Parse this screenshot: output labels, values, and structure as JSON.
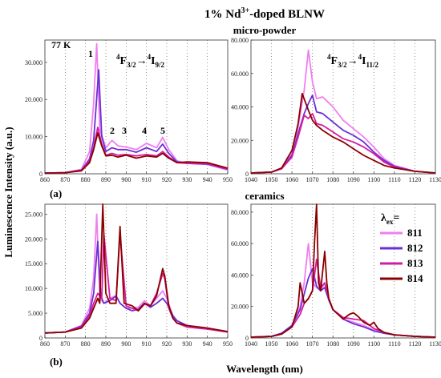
{
  "title_main": "1% Nd",
  "title_sup": "3+",
  "title_tail": "-doped BLNW",
  "section_top": "micro-powder",
  "section_bottom": "ceramics",
  "ylabel": "Luminescence Intensity (a.u.)",
  "xlabel": "Wavelength (nm)",
  "temp_label": "77 K",
  "panel_a": "(a)",
  "panel_b": "(b)",
  "trans_left": {
    "a": "4",
    "b": "F",
    "c": "3/2",
    "arrow": "→",
    "d": "4",
    "e": "I",
    "f": "9/2"
  },
  "trans_right": {
    "a": "4",
    "b": "F",
    "c": "3/2",
    "arrow": "→",
    "d": "4",
    "e": "I",
    "f": "11/2"
  },
  "peak_labels": [
    "1",
    "2",
    "3",
    "4",
    "5"
  ],
  "legend": {
    "title_a": "λ",
    "title_b": "ex",
    "title_c": "=",
    "items": [
      "811",
      "812",
      "813",
      "814"
    ]
  },
  "colors": {
    "811": "#f07ef0",
    "812": "#6a2fd6",
    "813": "#d61c9e",
    "814": "#8b0000"
  },
  "chart_data": [
    {
      "type": "line",
      "panel": "top-left",
      "xlim": [
        860,
        950
      ],
      "ylim": [
        0,
        36000
      ],
      "xticks": [
        "860",
        "870",
        "880",
        "890",
        "900",
        "910",
        "920",
        "930",
        "940",
        "950"
      ],
      "yticks": [
        "0",
        "10.000",
        "20.000",
        "30.000"
      ],
      "series": [
        {
          "name": "811",
          "x": [
            860,
            870,
            878,
            882,
            884,
            885.5,
            887,
            890,
            893,
            896,
            900,
            905,
            910,
            915,
            918,
            921,
            925,
            930,
            940,
            950
          ],
          "y": [
            200,
            300,
            1200,
            6000,
            19000,
            35000,
            12000,
            7000,
            9000,
            7500,
            7200,
            6500,
            8200,
            7000,
            9800,
            6500,
            3500,
            2800,
            2500,
            1000
          ]
        },
        {
          "name": "812",
          "x": [
            860,
            870,
            878,
            882,
            884,
            886.5,
            888,
            890,
            893,
            896,
            900,
            905,
            910,
            915,
            918,
            921,
            925,
            930,
            940,
            950
          ],
          "y": [
            200,
            300,
            1000,
            4000,
            9000,
            28000,
            10000,
            6000,
            7000,
            6500,
            6500,
            5800,
            7000,
            6000,
            8000,
            5500,
            3200,
            2800,
            2600,
            1200
          ]
        },
        {
          "name": "813",
          "x": [
            860,
            870,
            878,
            882,
            884,
            886,
            888,
            890,
            893,
            896,
            900,
            905,
            910,
            915,
            918,
            921,
            925,
            930,
            940,
            950
          ],
          "y": [
            200,
            300,
            900,
            3500,
            7000,
            12500,
            8000,
            5000,
            5500,
            5000,
            5200,
            4800,
            5200,
            4800,
            6000,
            4500,
            3000,
            2800,
            2800,
            1300
          ]
        },
        {
          "name": "814",
          "x": [
            860,
            870,
            878,
            882,
            884,
            886,
            888,
            890,
            893,
            896,
            900,
            905,
            910,
            915,
            918,
            921,
            925,
            930,
            940,
            950
          ],
          "y": [
            200,
            300,
            800,
            3000,
            6500,
            11000,
            7500,
            4800,
            5000,
            4500,
            5000,
            4200,
            4800,
            4500,
            5500,
            4200,
            3000,
            3200,
            3000,
            1500
          ]
        }
      ]
    },
    {
      "type": "line",
      "panel": "top-right",
      "xlim": [
        1040,
        1130
      ],
      "ylim": [
        0,
        80000
      ],
      "xticks": [
        "1040",
        "1050",
        "1060",
        "1070",
        "1080",
        "1090",
        "1100",
        "1110",
        "1120",
        "1130"
      ],
      "yticks": [
        "0",
        "20.000",
        "40.000",
        "60.000",
        "80.000"
      ],
      "series": [
        {
          "name": "811",
          "x": [
            1040,
            1050,
            1055,
            1060,
            1063,
            1066,
            1068,
            1070,
            1072,
            1075,
            1080,
            1085,
            1090,
            1095,
            1100,
            1105,
            1110,
            1120,
            1130
          ],
          "y": [
            500,
            1000,
            3000,
            12000,
            28000,
            50000,
            74000,
            55000,
            45000,
            46000,
            40000,
            32000,
            27000,
            22000,
            16000,
            9000,
            5000,
            1500,
            500
          ]
        },
        {
          "name": "812",
          "x": [
            1040,
            1050,
            1055,
            1060,
            1063,
            1066,
            1068,
            1070,
            1072,
            1075,
            1080,
            1085,
            1090,
            1095,
            1100,
            1105,
            1110,
            1120,
            1130
          ],
          "y": [
            500,
            1000,
            3000,
            11000,
            24000,
            36000,
            42000,
            47000,
            37000,
            36000,
            31000,
            26000,
            23000,
            19000,
            13000,
            8000,
            4500,
            1500,
            500
          ]
        },
        {
          "name": "813",
          "x": [
            1040,
            1050,
            1055,
            1060,
            1063,
            1066,
            1068,
            1070,
            1072,
            1075,
            1080,
            1085,
            1090,
            1095,
            1100,
            1105,
            1110,
            1120,
            1130
          ],
          "y": [
            500,
            1000,
            3000,
            10000,
            22000,
            35000,
            33000,
            36000,
            30000,
            29000,
            25000,
            21000,
            19000,
            16000,
            12000,
            7000,
            4000,
            1500,
            500
          ]
        },
        {
          "name": "814",
          "x": [
            1040,
            1050,
            1055,
            1060,
            1063,
            1065,
            1068,
            1070,
            1072,
            1075,
            1080,
            1085,
            1090,
            1095,
            1100,
            1105,
            1110,
            1120,
            1130
          ],
          "y": [
            500,
            1000,
            3500,
            14000,
            30000,
            48000,
            38000,
            32000,
            29000,
            26000,
            22000,
            19000,
            15000,
            11000,
            8000,
            5000,
            3500,
            1500,
            500
          ]
        }
      ]
    },
    {
      "type": "line",
      "panel": "bottom-left",
      "xlim": [
        860,
        950
      ],
      "ylim": [
        0,
        27000
      ],
      "xticks": [
        "860",
        "870",
        "880",
        "890",
        "900",
        "910",
        "920",
        "930",
        "940",
        "950"
      ],
      "yticks": [
        "0",
        "5.000",
        "10.000",
        "15.000",
        "20.000",
        "25.000"
      ],
      "series": [
        {
          "name": "811",
          "x": [
            860,
            870,
            878,
            882,
            884,
            885.5,
            887,
            889,
            892,
            895,
            897,
            900,
            903,
            906,
            909,
            912,
            915,
            918,
            920,
            923,
            925,
            930,
            940,
            950
          ],
          "y": [
            1000,
            1200,
            2500,
            6000,
            12000,
            25000,
            8000,
            7000,
            8000,
            8500,
            7000,
            6000,
            6000,
            6200,
            7500,
            6500,
            8000,
            9500,
            8000,
            4500,
            3500,
            2500,
            2000,
            1200
          ]
        },
        {
          "name": "812",
          "x": [
            860,
            870,
            878,
            882,
            884,
            886,
            887.5,
            889,
            892,
            895,
            897,
            900,
            903,
            906,
            909,
            912,
            915,
            918,
            920,
            923,
            925,
            930,
            940,
            950
          ],
          "y": [
            1000,
            1200,
            2400,
            5000,
            9000,
            19500,
            8500,
            7000,
            7500,
            8500,
            7000,
            6000,
            5500,
            5800,
            7000,
            6200,
            7000,
            8000,
            7000,
            4500,
            3500,
            2500,
            1800,
            1200
          ]
        },
        {
          "name": "813",
          "x": [
            860,
            870,
            878,
            882,
            884,
            886,
            888,
            889,
            892,
            895,
            897,
            900,
            903,
            906,
            909,
            912,
            915,
            918,
            919,
            921,
            923,
            925,
            930,
            940,
            950
          ],
          "y": [
            1000,
            1200,
            2200,
            4500,
            7000,
            9000,
            8000,
            21000,
            8000,
            7500,
            21000,
            6500,
            6000,
            5500,
            6800,
            6500,
            9000,
            13000,
            12000,
            6000,
            4000,
            3000,
            2200,
            1800,
            1200
          ]
        },
        {
          "name": "814",
          "x": [
            860,
            870,
            878,
            882,
            884,
            886,
            887,
            888.5,
            890,
            892,
            895,
            897,
            899,
            903,
            906,
            909,
            912,
            915,
            918,
            919,
            921,
            923,
            925,
            930,
            940,
            950
          ],
          "y": [
            1000,
            1200,
            2000,
            4000,
            6000,
            8000,
            7000,
            27000,
            9000,
            7000,
            7000,
            22500,
            7000,
            6500,
            5500,
            7000,
            6500,
            8500,
            14000,
            12500,
            6500,
            4000,
            3000,
            2500,
            2000,
            1300
          ]
        }
      ]
    },
    {
      "type": "line",
      "panel": "bottom-right",
      "xlim": [
        1040,
        1130
      ],
      "ylim": [
        0,
        85000
      ],
      "xticks": [
        "1040",
        "1050",
        "1060",
        "1070",
        "1080",
        "1090",
        "1100",
        "1110",
        "1120",
        "1130"
      ],
      "yticks": [
        "0",
        "20.000",
        "40.000",
        "60.000",
        "80.000"
      ],
      "series": [
        {
          "name": "811",
          "x": [
            1040,
            1050,
            1055,
            1060,
            1064,
            1066,
            1068,
            1070,
            1072,
            1074,
            1076,
            1078,
            1080,
            1085,
            1090,
            1095,
            1100,
            1105,
            1110,
            1120,
            1130
          ],
          "y": [
            500,
            1000,
            3000,
            8000,
            20000,
            35000,
            60000,
            35000,
            32000,
            30000,
            35000,
            25000,
            18000,
            12000,
            10000,
            8000,
            5000,
            3000,
            2000,
            1000,
            500
          ]
        },
        {
          "name": "812",
          "x": [
            1040,
            1050,
            1055,
            1060,
            1064,
            1066,
            1068,
            1070,
            1072,
            1074,
            1076,
            1078,
            1080,
            1085,
            1090,
            1095,
            1100,
            1105,
            1110,
            1120,
            1130
          ],
          "y": [
            500,
            1000,
            3000,
            8000,
            18000,
            28000,
            38000,
            44000,
            33000,
            30000,
            32000,
            24000,
            18000,
            12000,
            9000,
            7000,
            4500,
            3000,
            2000,
            1000,
            500
          ]
        },
        {
          "name": "813",
          "x": [
            1040,
            1050,
            1055,
            1060,
            1064,
            1066,
            1068,
            1070,
            1072,
            1074,
            1076,
            1078,
            1080,
            1085,
            1090,
            1095,
            1100,
            1105,
            1110,
            1120,
            1130
          ],
          "y": [
            500,
            1000,
            2500,
            7000,
            15000,
            22000,
            25000,
            30000,
            50000,
            32000,
            35000,
            25000,
            18000,
            13000,
            12000,
            11000,
            6000,
            3500,
            2000,
            1000,
            500
          ]
        },
        {
          "name": "814",
          "x": [
            1040,
            1050,
            1055,
            1060,
            1063,
            1064,
            1066,
            1068,
            1070,
            1071,
            1072,
            1073,
            1074,
            1076,
            1077,
            1078,
            1080,
            1085,
            1088,
            1090,
            1092,
            1095,
            1098,
            1100,
            1102,
            1105,
            1110,
            1120,
            1130
          ],
          "y": [
            500,
            1000,
            2500,
            7000,
            20000,
            35000,
            22000,
            25000,
            30000,
            60000,
            85000,
            35000,
            30000,
            55000,
            35000,
            25000,
            18000,
            12000,
            15000,
            16000,
            14000,
            10000,
            8000,
            10000,
            6000,
            3500,
            2000,
            1000,
            500
          ]
        }
      ]
    }
  ]
}
